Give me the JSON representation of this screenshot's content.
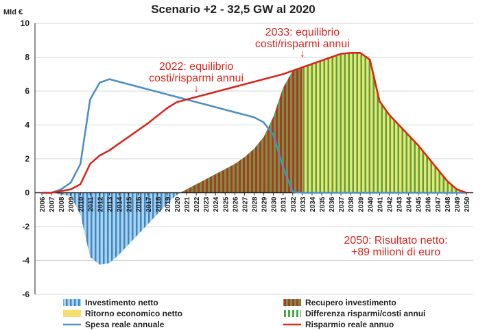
{
  "chart_data": {
    "type": "area",
    "title": "Scenario +2 - 32,5 GW al 2020",
    "ylabel": "Mld €",
    "ylim": [
      -6,
      10
    ],
    "yticks": [
      "-6",
      "-4",
      "-2",
      "0",
      "2",
      "4",
      "6",
      "8",
      "10"
    ],
    "grid": true,
    "x": [
      2006,
      2007,
      2008,
      2009,
      2010,
      2011,
      2012,
      2013,
      2014,
      2015,
      2016,
      2017,
      2018,
      2019,
      2020,
      2021,
      2022,
      2023,
      2024,
      2025,
      2026,
      2027,
      2028,
      2029,
      2030,
      2031,
      2032,
      2033,
      2034,
      2035,
      2036,
      2037,
      2038,
      2039,
      2040,
      2041,
      2042,
      2043,
      2044,
      2045,
      2046,
      2047,
      2048,
      2049,
      2050
    ],
    "x_labels": [
      "2006",
      "2007",
      "2008",
      "2009",
      "2010",
      "2011",
      "2012",
      "2013",
      "2014",
      "2015",
      "2016",
      "2017",
      "2018",
      "2019",
      "2020",
      "2021",
      "2022",
      "2023",
      "2024",
      "2025",
      "2026",
      "2027",
      "2028",
      "2029",
      "2030",
      "2031",
      "2032",
      "2033",
      "2034",
      "2035",
      "2036",
      "2037",
      "2038",
      "2039",
      "2040",
      "2041",
      "2042",
      "2043",
      "2044",
      "2045",
      "2046",
      "2047",
      "2048",
      "2049",
      "2050"
    ],
    "series": [
      {
        "name": "Differenza risparmi/costi annui",
        "kind": "area",
        "color": "#4aa84a",
        "values": [
          0,
          0,
          -0.1,
          -0.2,
          -1.3,
          -3.8,
          -4.25,
          -4.15,
          -3.65,
          -3.05,
          -2.45,
          -1.85,
          -1.25,
          -0.65,
          -0.1,
          0.2,
          0.5,
          0.8,
          1.1,
          1.4,
          1.7,
          2.1,
          2.6,
          3.3,
          4.5,
          6.2,
          7.2,
          7.4,
          7.6,
          7.8,
          8.0,
          8.2,
          8.2,
          8.2,
          7.8,
          5.4,
          4.6,
          4.0,
          3.4,
          2.8,
          2.1,
          1.4,
          0.7,
          0.2,
          0
        ]
      },
      {
        "name": "Spesa reale annuale",
        "kind": "line",
        "color": "#4a90c8",
        "values": [
          0,
          0,
          0.2,
          0.6,
          1.7,
          5.5,
          6.5,
          6.7,
          6.55,
          6.4,
          6.25,
          6.1,
          5.95,
          5.8,
          5.65,
          5.5,
          5.35,
          5.2,
          5.05,
          4.9,
          4.75,
          4.6,
          4.45,
          4.15,
          3.4,
          1.5,
          0.05,
          0,
          0,
          0,
          0,
          0,
          0,
          0,
          0,
          0,
          0,
          0,
          0,
          0,
          0,
          0,
          0,
          0,
          0
        ]
      },
      {
        "name": "Risparmio reale annuo",
        "kind": "line",
        "color": "#d9261c",
        "values": [
          0,
          0,
          0.1,
          0.2,
          0.5,
          1.7,
          2.2,
          2.5,
          2.9,
          3.3,
          3.7,
          4.1,
          4.55,
          5.0,
          5.35,
          5.5,
          5.65,
          5.8,
          5.95,
          6.1,
          6.25,
          6.4,
          6.55,
          6.7,
          6.85,
          7.0,
          7.2,
          7.4,
          7.6,
          7.8,
          8.0,
          8.2,
          8.25,
          8.25,
          7.85,
          5.4,
          4.6,
          4.0,
          3.4,
          2.8,
          2.1,
          1.4,
          0.7,
          0.2,
          0
        ]
      }
    ],
    "legend": {
      "placement": "bottom",
      "items": [
        {
          "label": "Investimento netto",
          "swatch": "blue-hatch",
          "color": "#8dc3e8"
        },
        {
          "label": "Recupero investimento",
          "swatch": "red-hatch",
          "color": "#d9261c"
        },
        {
          "label": "Ritorno economico netto",
          "swatch": "yellow",
          "color": "#f4e06a"
        },
        {
          "label": "Differenza risparmi/costi annui",
          "swatch": "green-hatch",
          "color": "#4aa84a"
        },
        {
          "label": "Spesa reale annuale",
          "swatch": "line",
          "color": "#4a90c8"
        },
        {
          "label": "Risparmio reale annuo",
          "swatch": "line",
          "color": "#d9261c"
        }
      ]
    },
    "annotations": [
      {
        "line1": "2022: equilibrio",
        "line2": "costi/risparmi annui",
        "year": 2022,
        "arrow": "↓",
        "color": "#d9261c"
      },
      {
        "line1": "2033: equilibrio",
        "line2": "costi/risparmi annui",
        "year": 2033,
        "arrow": "↓",
        "color": "#d9261c"
      },
      {
        "line1": "2050: Risultato netto:",
        "line2": "+89 milioni di euro",
        "color": "#d9261c"
      }
    ]
  }
}
